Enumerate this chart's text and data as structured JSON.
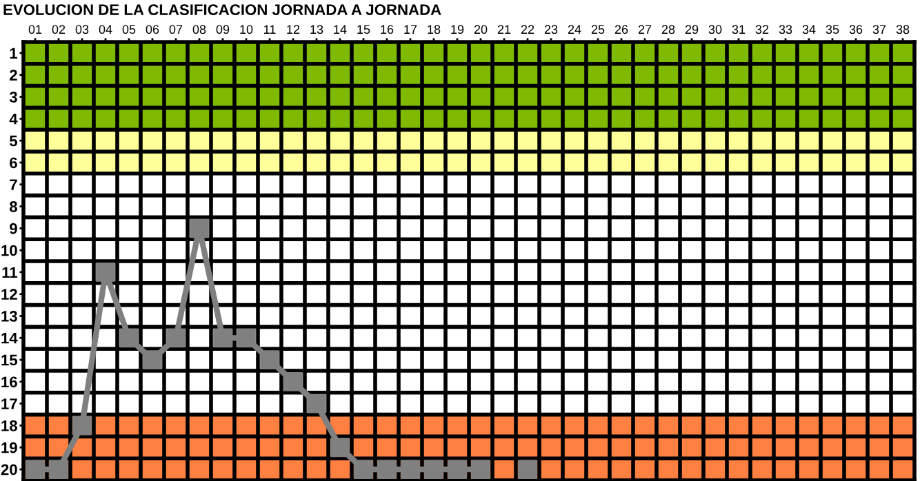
{
  "chart_data": {
    "type": "line",
    "title": "EVOLUCION DE LA CLASIFICACION JORNADA A JORNADA",
    "categories": [
      "01",
      "02",
      "03",
      "04",
      "05",
      "06",
      "07",
      "08",
      "09",
      "10",
      "11",
      "12",
      "13",
      "14",
      "15",
      "16",
      "17",
      "18",
      "19",
      "20",
      "21",
      "22",
      "23",
      "24",
      "25",
      "26",
      "27",
      "28",
      "29",
      "30",
      "31",
      "32",
      "33",
      "34",
      "35",
      "36",
      "37",
      "38"
    ],
    "series": [
      {
        "color": "#808080",
        "values": [
          20,
          20,
          18,
          11,
          14,
          15,
          14,
          9,
          14,
          14,
          15,
          16,
          17,
          19,
          20,
          20,
          20,
          20,
          20,
          20,
          null,
          20,
          null,
          null,
          null,
          null,
          null,
          null,
          null,
          null,
          null,
          null,
          null,
          null,
          null,
          null,
          null,
          null
        ]
      }
    ],
    "ylim": [
      20.5,
      0.5
    ],
    "yticks": [
      1,
      2,
      3,
      4,
      5,
      6,
      7,
      8,
      9,
      10,
      11,
      12,
      13,
      14,
      15,
      16,
      17,
      18,
      19,
      20
    ],
    "bands": [
      {
        "axis": "y",
        "from": 0.5,
        "to": 4.5,
        "color": "#7fba00"
      },
      {
        "axis": "y",
        "from": 4.5,
        "to": 6.5,
        "color": "#ffff99"
      },
      {
        "axis": "y",
        "from": 17.5,
        "to": 20.5,
        "color": "#ff8040"
      }
    ],
    "grid": true,
    "marker": "square",
    "line_style": "solid",
    "legend": false
  }
}
